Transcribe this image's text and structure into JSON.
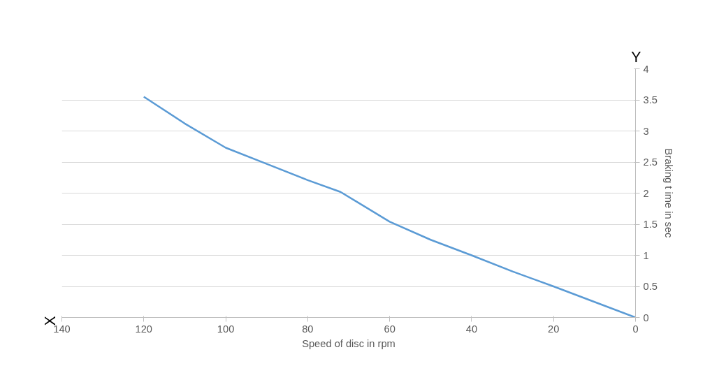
{
  "chart_data": {
    "type": "line",
    "xlabel": "Speed of disc in rpm",
    "ylabel": "Braking t ime in sec",
    "annotations": [
      "X",
      "Y"
    ],
    "x": [
      120,
      110,
      100,
      90,
      80,
      72,
      60,
      50,
      40,
      30,
      20,
      10,
      0
    ],
    "series": [
      {
        "color": "#5b9bd5",
        "values": [
          3.55,
          3.12,
          2.73,
          2.47,
          2.21,
          2.02,
          1.54,
          1.25,
          1.0,
          0.74,
          0.5,
          0.25,
          0
        ]
      }
    ],
    "xlim": [
      140,
      0
    ],
    "xticks": [
      140,
      120,
      100,
      80,
      60,
      40,
      20,
      0
    ],
    "ylim": [
      0,
      4
    ],
    "yticks": [
      0,
      0.5,
      1,
      1.5,
      2,
      2.5,
      3,
      3.5,
      4
    ],
    "grid": "y",
    "marker": "none",
    "line_style": "solid"
  }
}
